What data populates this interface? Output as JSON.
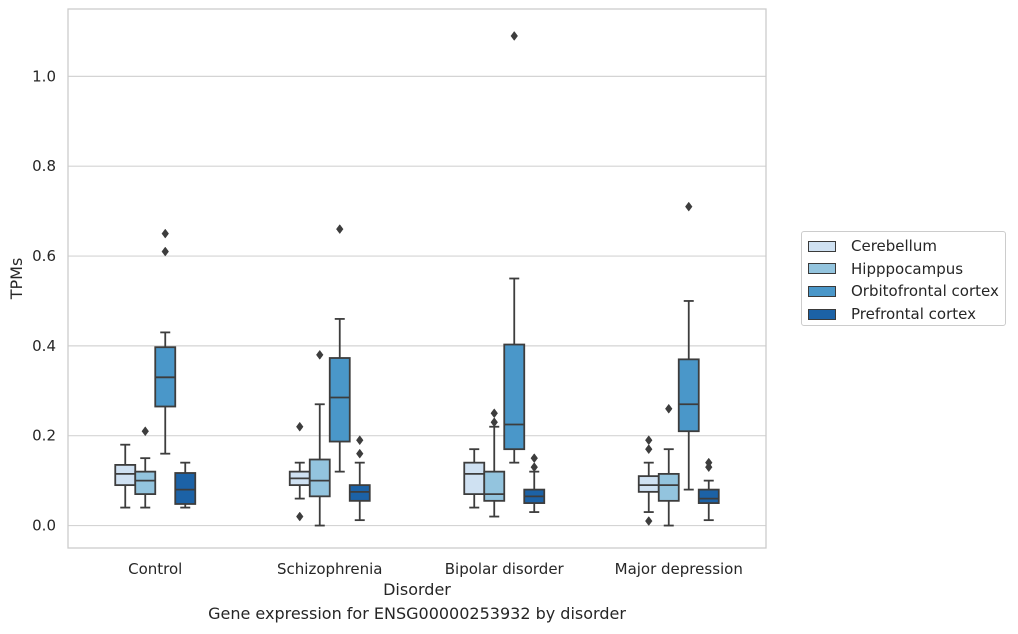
{
  "chart_data": {
    "type": "box",
    "caption": "Gene expression for ENSG00000253932 by disorder",
    "xlabel": "Disorder",
    "ylabel": "TPMs",
    "ylim": [
      -0.05,
      1.15
    ],
    "yticks": [
      0.0,
      0.2,
      0.4,
      0.6,
      0.8,
      1.0
    ],
    "ytick_labels": [
      "0.0",
      "0.2",
      "0.4",
      "0.6",
      "0.8",
      "1.0"
    ],
    "categories": [
      "Control",
      "Schizophrenia",
      "Bipolar disorder",
      "Major depression"
    ],
    "grid": "horizontal",
    "legend_position": "right",
    "series": [
      {
        "name": "Cerebellum",
        "color": "#cfe1f2",
        "boxes": [
          {
            "whislo": 0.04,
            "q1": 0.09,
            "med": 0.115,
            "q3": 0.135,
            "whishi": 0.18,
            "fliers": []
          },
          {
            "whislo": 0.06,
            "q1": 0.09,
            "med": 0.105,
            "q3": 0.12,
            "whishi": 0.14,
            "fliers": [
              0.22,
              0.02
            ]
          },
          {
            "whislo": 0.04,
            "q1": 0.07,
            "med": 0.115,
            "q3": 0.14,
            "whishi": 0.17,
            "fliers": []
          },
          {
            "whislo": 0.03,
            "q1": 0.075,
            "med": 0.09,
            "q3": 0.11,
            "whishi": 0.14,
            "fliers": [
              0.19,
              0.17,
              0.01
            ]
          }
        ]
      },
      {
        "name": "Hipppocampus",
        "color": "#93c4de",
        "boxes": [
          {
            "whislo": 0.04,
            "q1": 0.07,
            "med": 0.1,
            "q3": 0.12,
            "whishi": 0.15,
            "fliers": [
              0.21
            ]
          },
          {
            "whislo": 0.0,
            "q1": 0.065,
            "med": 0.1,
            "q3": 0.147,
            "whishi": 0.27,
            "fliers": [
              0.38
            ]
          },
          {
            "whislo": 0.02,
            "q1": 0.055,
            "med": 0.07,
            "q3": 0.12,
            "whishi": 0.22,
            "fliers": [
              0.25,
              0.23
            ]
          },
          {
            "whislo": 0.0,
            "q1": 0.055,
            "med": 0.09,
            "q3": 0.115,
            "whishi": 0.17,
            "fliers": [
              0.26
            ]
          }
        ]
      },
      {
        "name": "Orbitofrontal cortex",
        "color": "#4a97c9",
        "boxes": [
          {
            "whislo": 0.16,
            "q1": 0.265,
            "med": 0.33,
            "q3": 0.397,
            "whishi": 0.43,
            "fliers": [
              0.65,
              0.61
            ]
          },
          {
            "whislo": 0.12,
            "q1": 0.187,
            "med": 0.285,
            "q3": 0.373,
            "whishi": 0.46,
            "fliers": [
              0.66
            ]
          },
          {
            "whislo": 0.14,
            "q1": 0.17,
            "med": 0.225,
            "q3": 0.403,
            "whishi": 0.55,
            "fliers": [
              1.09
            ]
          },
          {
            "whislo": 0.08,
            "q1": 0.21,
            "med": 0.27,
            "q3": 0.37,
            "whishi": 0.5,
            "fliers": [
              0.71
            ]
          }
        ]
      },
      {
        "name": "Prefrontal cortex",
        "color": "#1c62a6",
        "boxes": [
          {
            "whislo": 0.04,
            "q1": 0.048,
            "med": 0.08,
            "q3": 0.117,
            "whishi": 0.14,
            "fliers": []
          },
          {
            "whislo": 0.012,
            "q1": 0.055,
            "med": 0.075,
            "q3": 0.09,
            "whishi": 0.14,
            "fliers": [
              0.19,
              0.16
            ]
          },
          {
            "whislo": 0.03,
            "q1": 0.05,
            "med": 0.065,
            "q3": 0.08,
            "whishi": 0.12,
            "fliers": [
              0.15,
              0.13
            ]
          },
          {
            "whislo": 0.012,
            "q1": 0.05,
            "med": 0.06,
            "q3": 0.08,
            "whishi": 0.1,
            "fliers": [
              0.14,
              0.13
            ]
          }
        ]
      }
    ]
  }
}
